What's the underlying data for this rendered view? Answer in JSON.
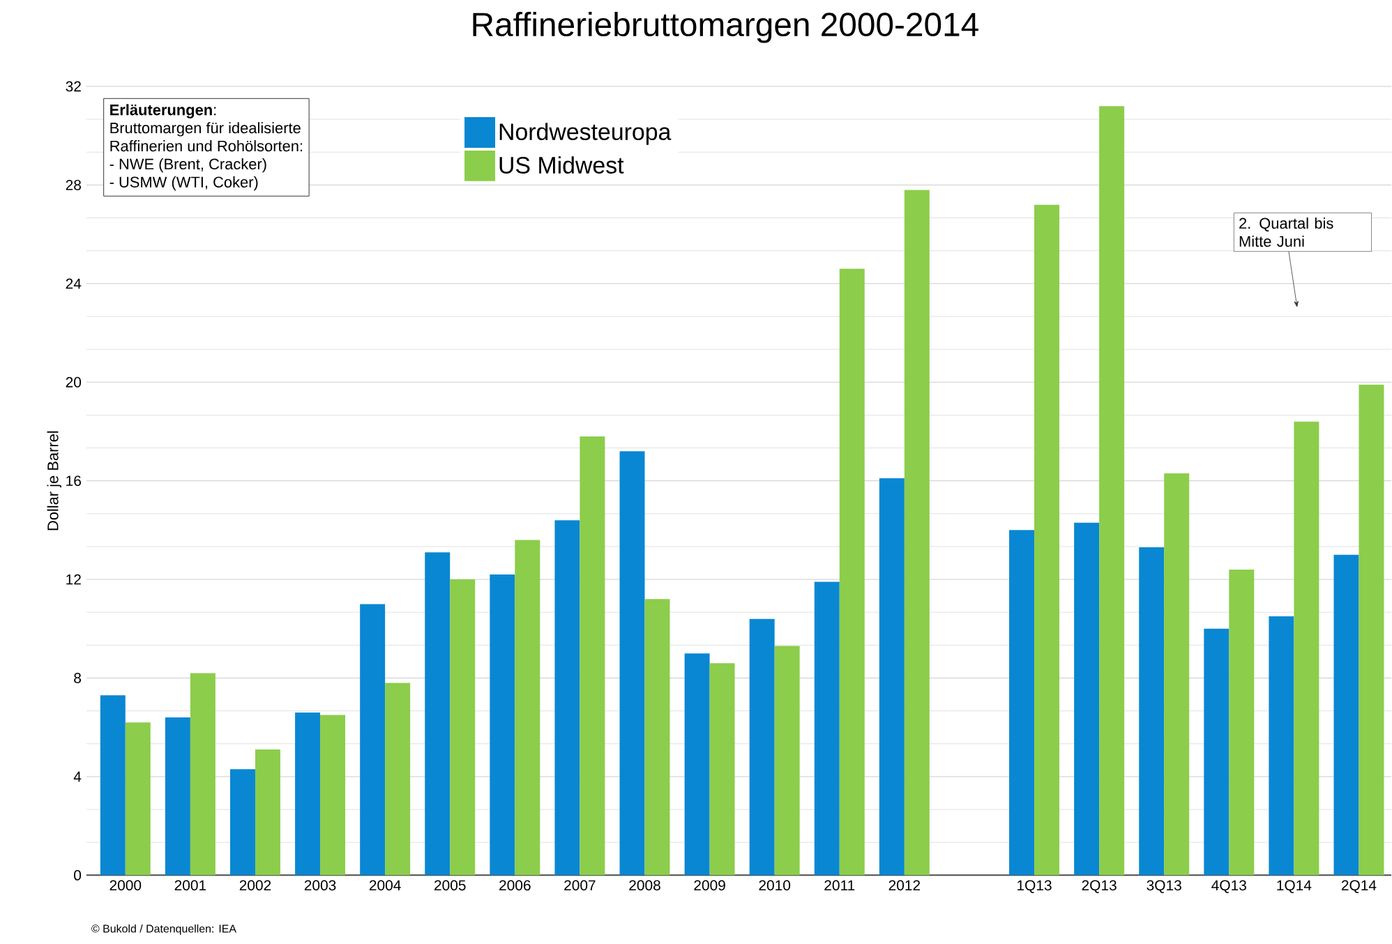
{
  "chart_data": {
    "type": "bar",
    "title": "Raffineriebruttomargen 2000-2014",
    "ylabel": "Dollar je Barrel",
    "categories": [
      "2000",
      "2001",
      "2002",
      "2003",
      "2004",
      "2005",
      "2006",
      "2007",
      "2008",
      "2009",
      "2010",
      "2011",
      "2012",
      null,
      "1Q13",
      "2Q13",
      "3Q13",
      "4Q13",
      "1Q14",
      "2Q14"
    ],
    "series": [
      {
        "name": "Nordwesteuropa",
        "color": "#0a87d2",
        "values": [
          7.3,
          6.4,
          4.3,
          6.6,
          11.0,
          13.1,
          12.2,
          14.4,
          17.2,
          9.0,
          10.4,
          11.9,
          16.1,
          null,
          14.0,
          14.3,
          13.3,
          10.0,
          10.5,
          13.0
        ]
      },
      {
        "name": "US Midwest",
        "color": "#8ccd4b",
        "values": [
          6.2,
          8.2,
          5.1,
          6.5,
          7.8,
          12.0,
          13.6,
          17.8,
          11.2,
          8.6,
          9.3,
          24.6,
          27.8,
          null,
          27.2,
          31.2,
          16.3,
          12.4,
          18.4,
          19.9
        ]
      }
    ],
    "ylim": [
      0,
      32
    ],
    "yticks": [
      0,
      4,
      8,
      12,
      16,
      20,
      24,
      28,
      32
    ],
    "grid": "y",
    "legend": "top",
    "annotations": [
      "**Erläuterungen**:",
      "Bruttomargen für idealisierte",
      "Raffinerien und Rohölsorten:",
      "- NWE (Brent, Cracker)",
      "- USMW (WTI, Coker)",
      "2. Quartal bis Mitte Juni",
      "© Bukold / Datenquellen: IEA"
    ]
  }
}
